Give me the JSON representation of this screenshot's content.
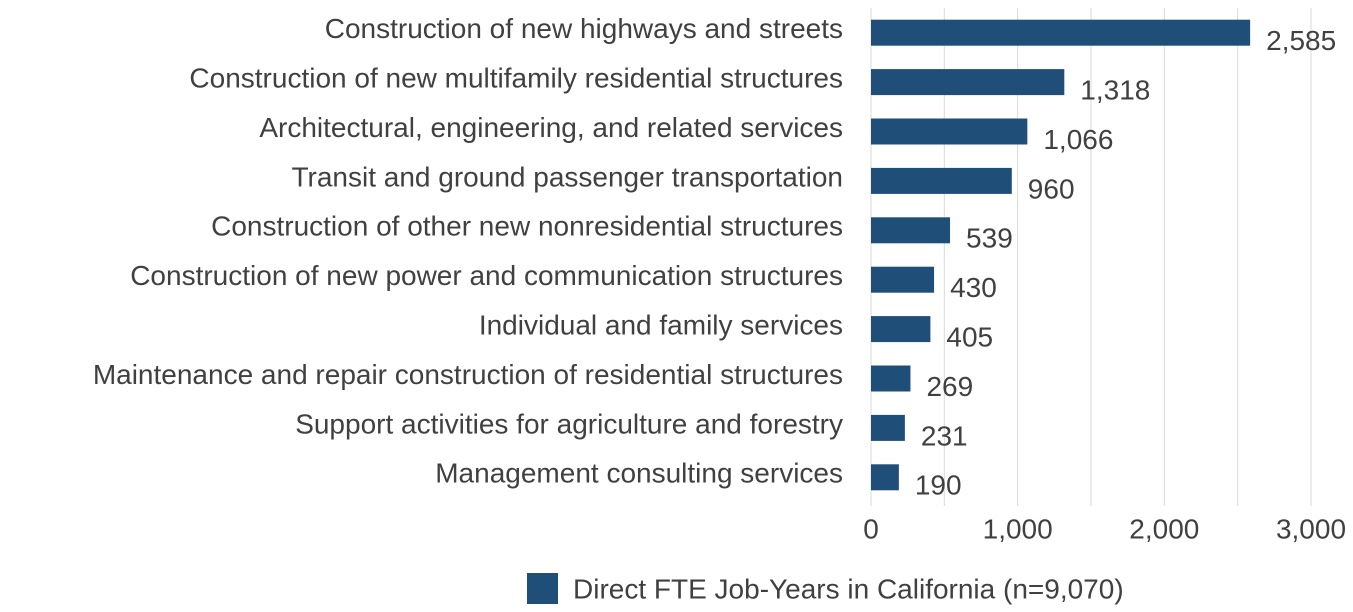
{
  "chart_data": {
    "type": "hbar",
    "categories": [
      "Construction of new highways and streets",
      "Construction of new multifamily residential structures",
      "Architectural, engineering, and related services",
      "Transit and ground passenger transportation",
      "Construction of other new nonresidential structures",
      "Construction of new power and communication structures",
      "Individual and family services",
      "Maintenance and repair construction of residential structures",
      "Support activities for agriculture and forestry",
      "Management consulting services"
    ],
    "series": [
      {
        "name": "Direct FTE Job-Years in California (n=9,070)",
        "color": "#1f4e79",
        "values": [
          2585,
          1318,
          1066,
          960,
          539,
          430,
          405,
          269,
          231,
          190
        ],
        "value_labels": [
          "2,585",
          "1,318",
          "1,066",
          "960",
          "539",
          "430",
          "405",
          "269",
          "231",
          "190"
        ]
      }
    ],
    "xlim": [
      0,
      3000
    ],
    "xticks": [
      0,
      {
        "value": 1000,
        "label": "1,000"
      },
      {
        "value": 2000,
        "label": "2,000"
      },
      {
        "value": 3000,
        "label": "3,000"
      }
    ],
    "xminor": [
      500,
      1500,
      2500
    ],
    "grid": true,
    "legend": "bottom"
  }
}
